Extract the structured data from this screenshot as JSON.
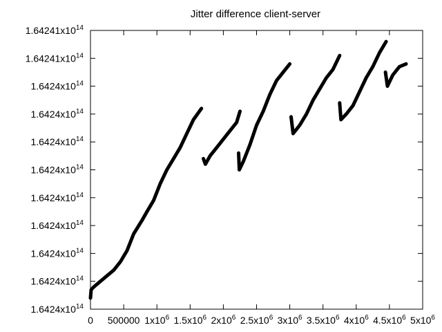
{
  "chart_data": {
    "type": "line",
    "title": "Jitter difference client-server",
    "xlabel": "",
    "ylabel": "",
    "grid": false,
    "legend": "none",
    "xlim": [
      0,
      5000000
    ],
    "ylim": [
      0,
      1
    ],
    "x_ticks": [
      {
        "value": 0,
        "label": "0",
        "sup": ""
      },
      {
        "value": 500000,
        "label": "500000",
        "sup": ""
      },
      {
        "value": 1000000,
        "label": "1x10",
        "sup": "6"
      },
      {
        "value": 1500000,
        "label": "1.5x10",
        "sup": "6"
      },
      {
        "value": 2000000,
        "label": "2x10",
        "sup": "6"
      },
      {
        "value": 2500000,
        "label": "2.5x10",
        "sup": "6"
      },
      {
        "value": 3000000,
        "label": "3x10",
        "sup": "6"
      },
      {
        "value": 3500000,
        "label": "3.5x10",
        "sup": "6"
      },
      {
        "value": 4000000,
        "label": "4x10",
        "sup": "6"
      },
      {
        "value": 4500000,
        "label": "4.5x10",
        "sup": "6"
      },
      {
        "value": 5000000,
        "label": "5x10",
        "sup": "6"
      }
    ],
    "y_ticks": [
      {
        "value": 0.0,
        "label": "1.6424x10",
        "sup": "14"
      },
      {
        "value": 0.1,
        "label": "1.6424x10",
        "sup": "14"
      },
      {
        "value": 0.2,
        "label": "1.6424x10",
        "sup": "14"
      },
      {
        "value": 0.3,
        "label": "1.6424x10",
        "sup": "14"
      },
      {
        "value": 0.4,
        "label": "1.6424x10",
        "sup": "14"
      },
      {
        "value": 0.5,
        "label": "1.6424x10",
        "sup": "14"
      },
      {
        "value": 0.6,
        "label": "1.6424x10",
        "sup": "14"
      },
      {
        "value": 0.7,
        "label": "1.6424x10",
        "sup": "14"
      },
      {
        "value": 0.8,
        "label": "1.6424x10",
        "sup": "14"
      },
      {
        "value": 0.9,
        "label": "1.64241x10",
        "sup": "14"
      },
      {
        "value": 1.0,
        "label": "1.64241x10",
        "sup": "14"
      }
    ],
    "series": [
      {
        "color": "#000000",
        "segments": [
          [
            [
              0,
              0.04
            ],
            [
              10000,
              0.07
            ],
            [
              50000,
              0.08
            ],
            [
              150000,
              0.1
            ],
            [
              250000,
              0.12
            ],
            [
              350000,
              0.14
            ],
            [
              450000,
              0.17
            ],
            [
              550000,
              0.21
            ],
            [
              650000,
              0.27
            ],
            [
              780000,
              0.32
            ],
            [
              850000,
              0.35
            ],
            [
              950000,
              0.39
            ],
            [
              1050000,
              0.45
            ],
            [
              1150000,
              0.5
            ],
            [
              1250000,
              0.54
            ],
            [
              1350000,
              0.58
            ],
            [
              1450000,
              0.63
            ],
            [
              1550000,
              0.68
            ],
            [
              1670000,
              0.72
            ]
          ],
          [
            [
              1700000,
              0.54
            ],
            [
              1730000,
              0.52
            ],
            [
              1800000,
              0.55
            ],
            [
              1900000,
              0.58
            ],
            [
              2000000,
              0.61
            ],
            [
              2100000,
              0.64
            ],
            [
              2200000,
              0.67
            ],
            [
              2250000,
              0.71
            ]
          ],
          [
            [
              2230000,
              0.56
            ],
            [
              2240000,
              0.5
            ],
            [
              2300000,
              0.53
            ],
            [
              2400000,
              0.59
            ],
            [
              2500000,
              0.66
            ],
            [
              2600000,
              0.71
            ],
            [
              2700000,
              0.77
            ],
            [
              2800000,
              0.82
            ],
            [
              2900000,
              0.85
            ],
            [
              3000000,
              0.88
            ]
          ],
          [
            [
              3020000,
              0.69
            ],
            [
              3050000,
              0.63
            ],
            [
              3150000,
              0.66
            ],
            [
              3250000,
              0.7
            ],
            [
              3350000,
              0.75
            ],
            [
              3450000,
              0.79
            ],
            [
              3550000,
              0.83
            ],
            [
              3650000,
              0.86
            ],
            [
              3750000,
              0.91
            ]
          ],
          [
            [
              3750000,
              0.74
            ],
            [
              3770000,
              0.68
            ],
            [
              3850000,
              0.7
            ],
            [
              3950000,
              0.73
            ],
            [
              4050000,
              0.78
            ],
            [
              4150000,
              0.83
            ],
            [
              4250000,
              0.87
            ],
            [
              4350000,
              0.92
            ],
            [
              4450000,
              0.96
            ]
          ],
          [
            [
              4440000,
              0.85
            ],
            [
              4470000,
              0.8
            ],
            [
              4550000,
              0.84
            ],
            [
              4650000,
              0.87
            ],
            [
              4750000,
              0.88
            ]
          ]
        ]
      }
    ]
  }
}
